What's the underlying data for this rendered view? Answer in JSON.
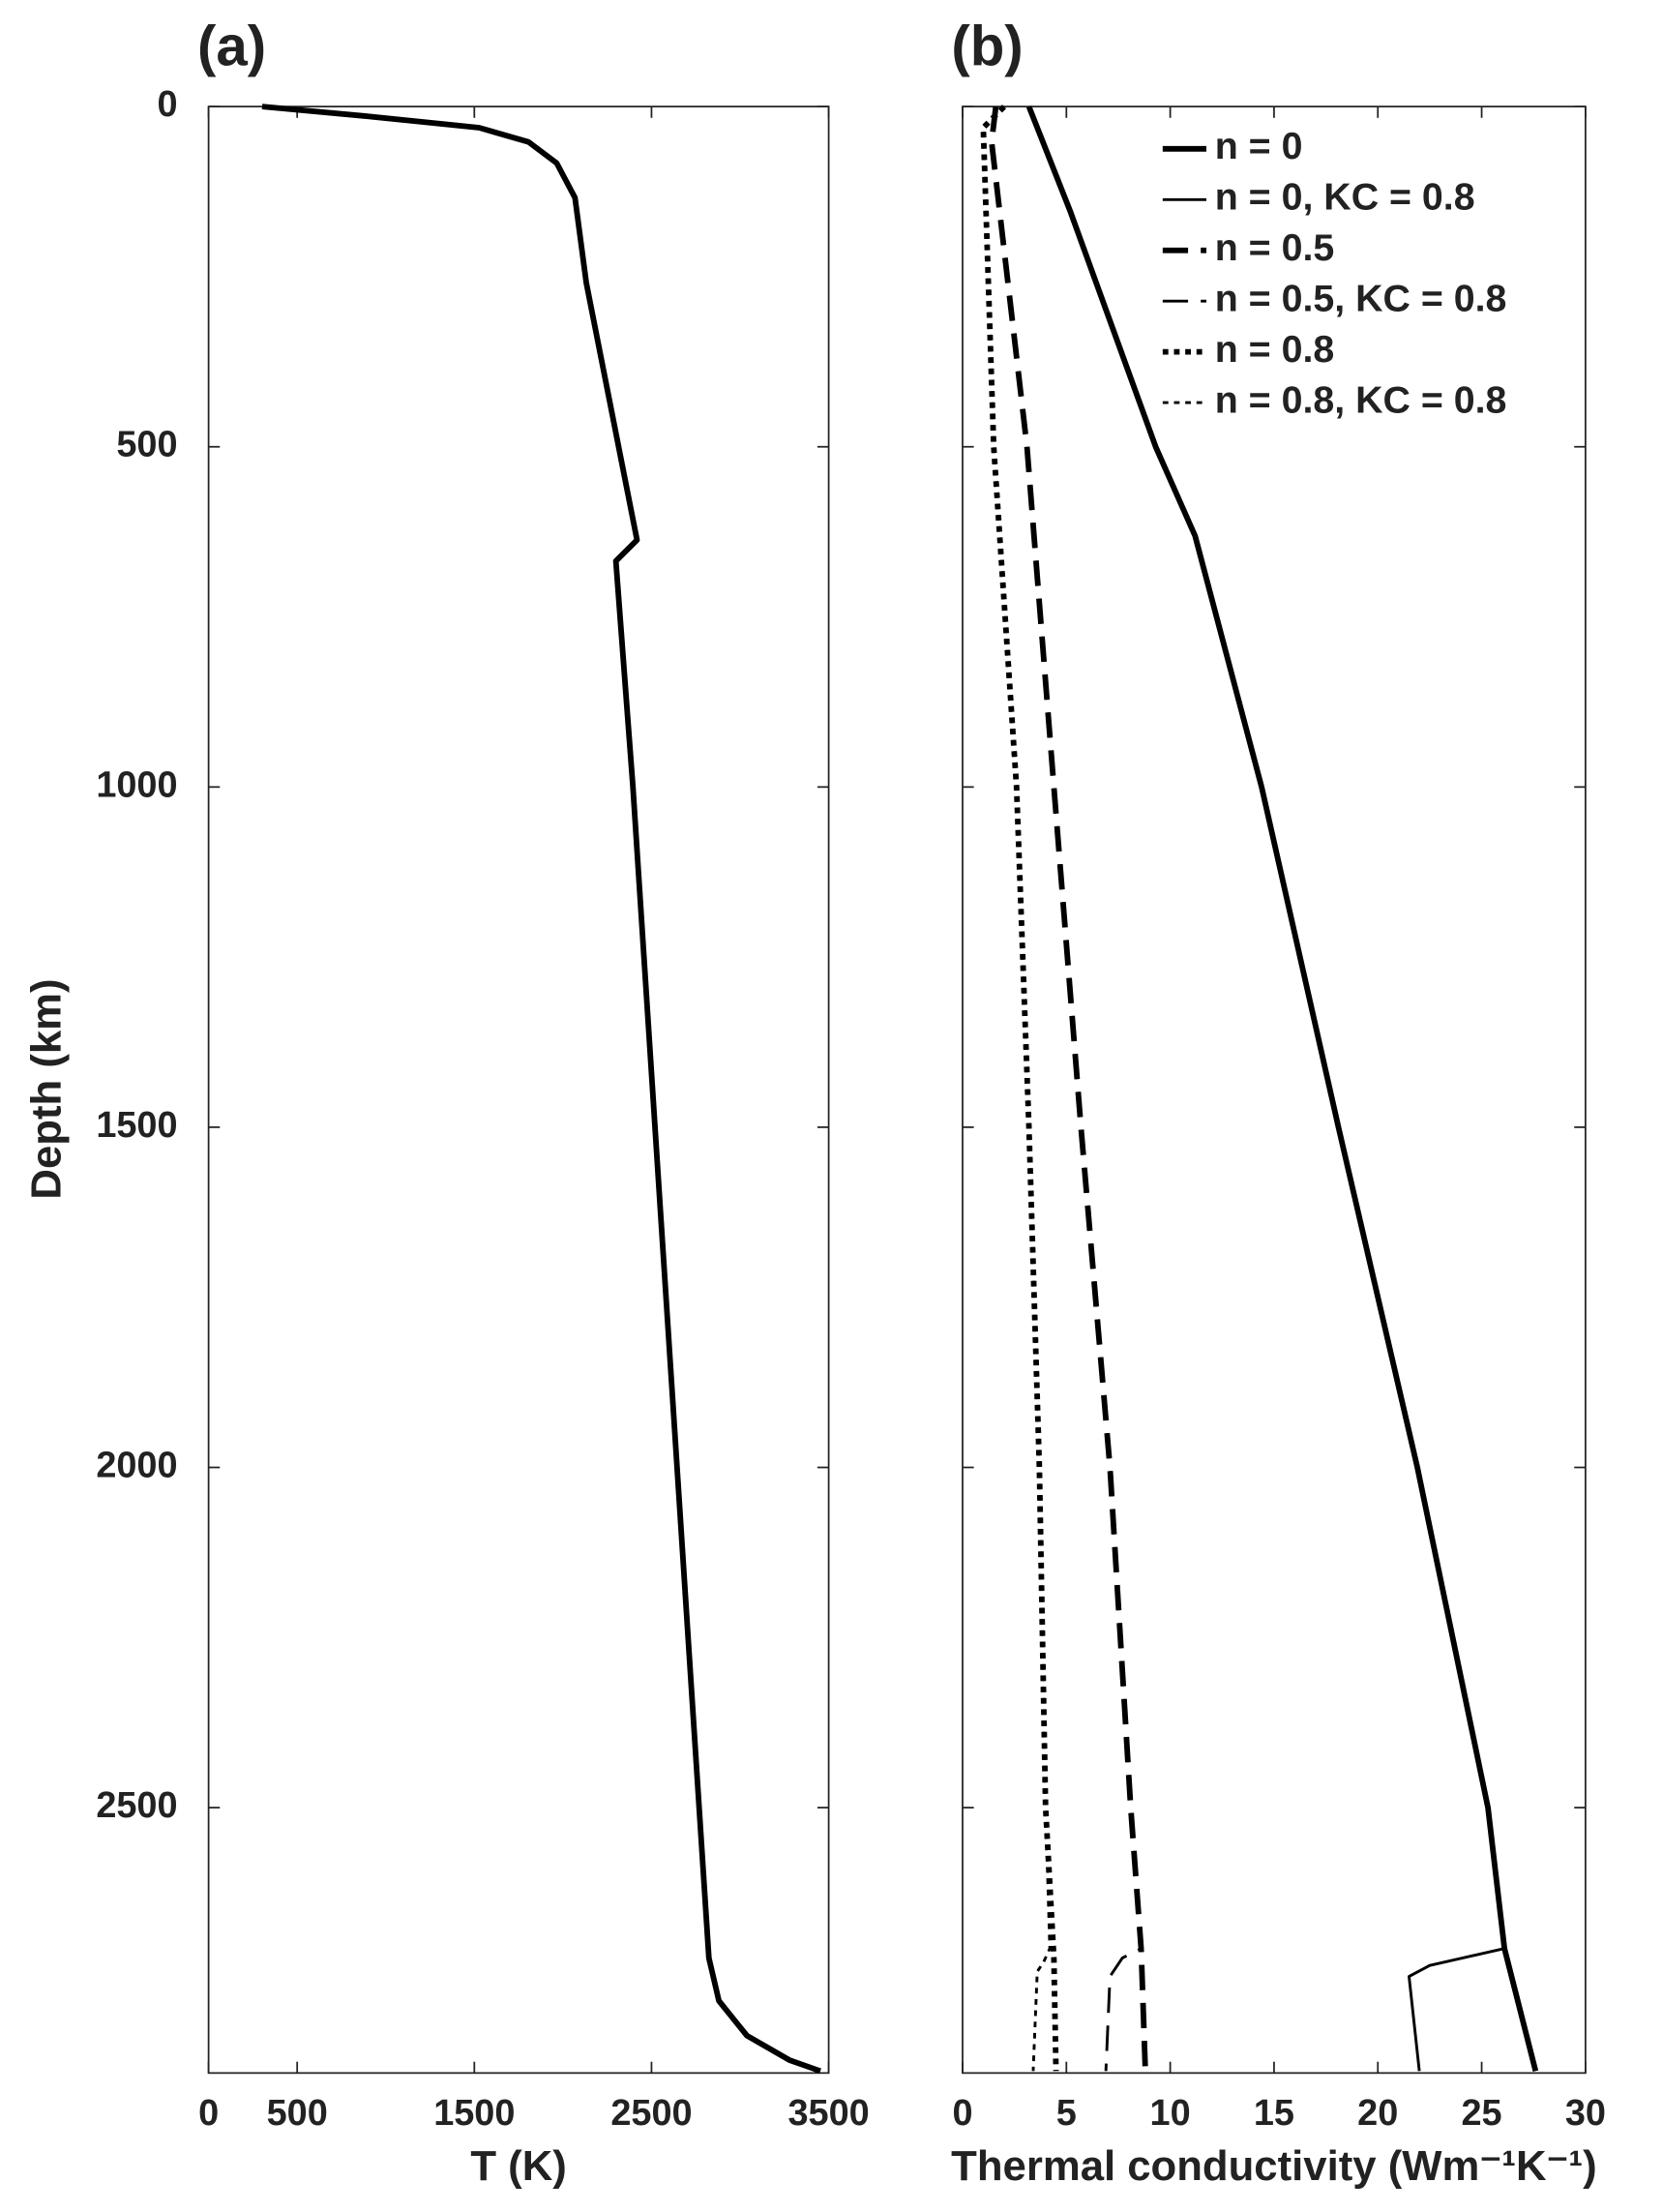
{
  "chart_data": [
    {
      "type": "line",
      "title": "(a)",
      "xlabel": "T (K)",
      "ylabel": "Depth (km)",
      "invert_y": true,
      "xlim": [
        0,
        3500
      ],
      "ylim": [
        0,
        2890
      ],
      "xticks": [
        0,
        500,
        1500,
        2500,
        3500
      ],
      "yticks": [
        0,
        500,
        1000,
        1500,
        2000,
        2500
      ],
      "ytick_labels": true,
      "series": [
        {
          "color": "#000000",
          "width": 4,
          "dash": "solid",
          "x": [
            302,
            891,
            1527,
            1806,
            1965,
            2068,
            2132,
            2418,
            2299,
            2395,
            2824,
            2880,
            3039,
            3278,
            3453
          ],
          "y": [
            0,
            14,
            31,
            52,
            83,
            134,
            259,
            637,
            668,
            1000,
            2721,
            2784,
            2835,
            2871,
            2887
          ]
        }
      ]
    },
    {
      "type": "line",
      "title": "(b)",
      "xlabel": "Thermal conductivity (Wm⁻¹K⁻¹)",
      "invert_y": true,
      "xlim": [
        0,
        30
      ],
      "ylim": [
        0,
        2890
      ],
      "xticks": [
        0,
        5,
        10,
        15,
        20,
        25,
        30
      ],
      "yticks": [
        0,
        500,
        1000,
        1500,
        2000,
        2500
      ],
      "ytick_labels": false,
      "legend": "upper right",
      "series": [
        {
          "name": "n = 0",
          "color": "#000000",
          "width": 4,
          "dash": "solid",
          "x": [
            3.2,
            5.2,
            9.3,
            11.2,
            14.4,
            18.1,
            21.9,
            25.3,
            26.1,
            27.6
          ],
          "y": [
            0,
            155,
            500,
            631,
            1000,
            1500,
            2000,
            2500,
            2707,
            2887
          ]
        },
        {
          "name": "n = 0, KC = 0.8",
          "color": "#000000",
          "width": 2,
          "dash": "solid",
          "x": [
            3.2,
            5.2,
            9.3,
            11.2,
            14.4,
            18.1,
            21.9,
            25.3,
            26.1,
            22.5,
            21.5,
            22.0
          ],
          "y": [
            0,
            155,
            500,
            631,
            1000,
            1500,
            2000,
            2500,
            2707,
            2732,
            2748,
            2887
          ]
        },
        {
          "name": "n = 0.5",
          "color": "#000000",
          "width": 4,
          "dash": "dashed",
          "x": [
            1.6,
            1.4,
            3.1,
            4.4,
            5.7,
            7.1,
            8.1,
            8.6,
            8.8
          ],
          "y": [
            0,
            52,
            500,
            1000,
            1500,
            2000,
            2500,
            2707,
            2887
          ]
        },
        {
          "name": "n = 0.5, KC = 0.8",
          "color": "#000000",
          "width": 2,
          "dash": "dashed",
          "x": [
            1.6,
            1.4,
            3.1,
            4.4,
            5.7,
            7.1,
            8.1,
            8.6,
            7.7,
            7.1,
            6.9
          ],
          "y": [
            0,
            52,
            500,
            1000,
            1500,
            2000,
            2500,
            2707,
            2721,
            2748,
            2887
          ]
        },
        {
          "name": "n = 0.8",
          "color": "#000000",
          "width": 4,
          "dash": "dotted",
          "x": [
            2.0,
            1.0,
            1.5,
            2.6,
            3.2,
            3.7,
            4.0,
            4.4,
            4.5
          ],
          "y": [
            0,
            31,
            500,
            1000,
            1500,
            2000,
            2500,
            2721,
            2887
          ]
        },
        {
          "name": "n = 0.8, KC = 0.8",
          "color": "#000000",
          "width": 2,
          "dash": "dotted",
          "x": [
            2.0,
            1.0,
            1.5,
            2.6,
            3.2,
            3.7,
            4.0,
            4.2,
            3.9,
            3.6,
            3.4
          ],
          "y": [
            0,
            31,
            500,
            1000,
            1500,
            2000,
            2500,
            2707,
            2727,
            2741,
            2887
          ]
        }
      ]
    }
  ]
}
